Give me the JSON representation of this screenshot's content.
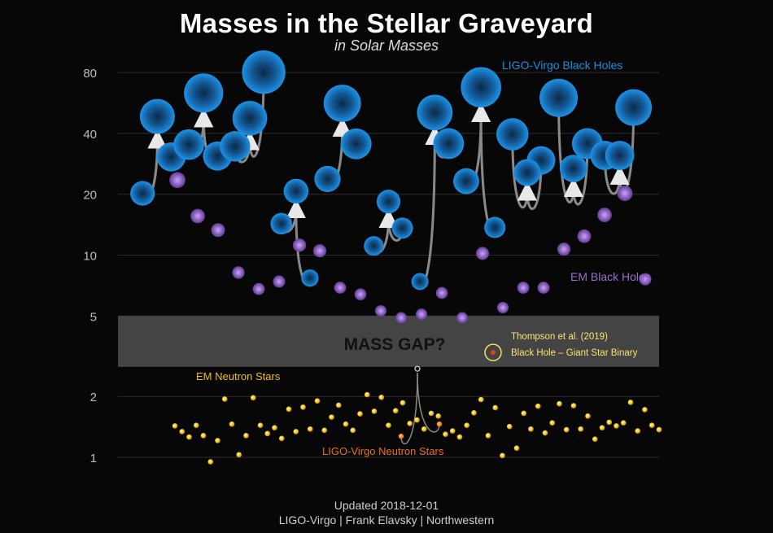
{
  "header": {
    "title": "Masses in the Stellar Graveyard",
    "subtitle": "in Solar Masses"
  },
  "footer": {
    "updated": "Updated 2018-12-01",
    "credits": "LIGO-Virgo | Frank Elavsky | Northwestern"
  },
  "colors": {
    "background": "#070707",
    "ligo_black_holes": "#1a8fe0",
    "em_black_holes": "#9a6fcf",
    "em_neutron_stars": "#f0c020",
    "ligo_neutron_stars": "#e8731a",
    "mass_gap_band": "#444444",
    "thompson": "#f0e060"
  },
  "chart_data": {
    "type": "scatter",
    "title": "Masses in the Stellar Graveyard",
    "subtitle": "in Solar Masses",
    "y_scale": "log",
    "ylim": [
      0.85,
      110
    ],
    "y_ticks": [
      1,
      2,
      5,
      10,
      20,
      40,
      80
    ],
    "grid": true,
    "mass_gap": {
      "label": "MASS GAP?",
      "range": [
        2.8,
        5
      ]
    },
    "labels": {
      "ligo_bh": "LIGO-Virgo Black Holes",
      "em_bh": "EM Black Holes",
      "em_ns": "EM Neutron Stars",
      "ligo_ns": "LIGO-Virgo Neutron Stars",
      "thompson_line1": "Thompson et al. (2019)",
      "thompson_line2": "Black Hole – Giant Star Binary"
    },
    "thompson_object": {
      "mass": 3.3
    },
    "ligo_mergers": [
      {
        "m1": 20.2,
        "m2": 30.6,
        "final": 48.5
      },
      {
        "m1": 35.2,
        "m2": 30.9,
        "final": 63.3
      },
      {
        "m1": 34.5,
        "m2": 80.3,
        "final": 47.5
      },
      {
        "m1": 14.3,
        "m2": 7.7,
        "final": 20.7
      },
      {
        "m1": 23.8,
        "m2": 35.5,
        "final": 56.3
      },
      {
        "m1": 11.1,
        "m2": 13.6,
        "final": 18.4
      },
      {
        "m1": 7.4,
        "m2": 35.6,
        "final": 50.7
      },
      {
        "m1": 23.2,
        "m2": 13.7,
        "final": 67.6
      },
      {
        "m1": 39.6,
        "m2": 29.4,
        "final": 25.6
      },
      {
        "m1": 59.9,
        "m2": 35.6,
        "final": 26.8
      },
      {
        "m1": 31.1,
        "m2": 53.7,
        "final": 31.1
      }
    ],
    "em_black_holes": [
      23.5,
      15.6,
      13.3,
      8.2,
      6.8,
      7.4,
      11.2,
      10.5,
      6.9,
      6.4,
      5.3,
      4.9,
      5.1,
      6.5,
      4.9,
      10.2,
      5.5,
      6.9,
      6.9,
      10.7,
      12.4,
      15.8,
      20.2,
      7.6
    ],
    "em_neutron_stars": [
      1.43,
      1.34,
      1.26,
      1.44,
      1.28,
      0.95,
      1.21,
      1.94,
      1.46,
      1.03,
      1.28,
      1.97,
      1.44,
      1.31,
      1.4,
      1.24,
      1.73,
      1.34,
      1.77,
      1.38,
      1.9,
      1.36,
      1.58,
      1.81,
      1.46,
      1.36,
      1.64,
      2.04,
      1.69,
      1.98,
      1.44,
      1.7,
      1.86,
      1.47,
      1.53,
      1.38,
      1.65,
      1.6,
      1.3,
      1.35,
      1.26,
      1.44,
      1.66,
      1.93,
      1.28,
      1.76,
      1.02,
      1.42,
      1.11,
      1.65,
      1.38,
      1.79,
      1.32,
      1.48,
      1.84,
      1.37,
      1.8,
      1.38,
      1.6,
      1.23,
      1.4,
      1.49,
      1.43,
      1.48,
      1.87,
      1.35,
      1.72,
      1.44,
      1.37
    ]
  }
}
